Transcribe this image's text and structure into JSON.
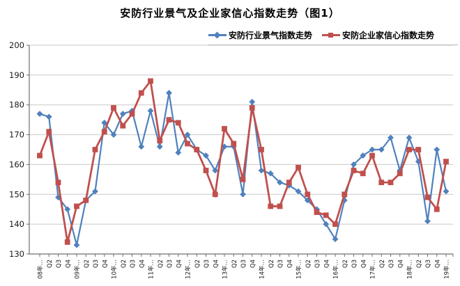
{
  "title": "安防行业景气及企业家信心指数走势（图1）",
  "legend": {
    "items": [
      {
        "label": "安防行业景气指数走势",
        "color": "#4F81BD",
        "marker": "diamond"
      },
      {
        "label": "安防企业家信心指数走势",
        "color": "#C0504D",
        "marker": "square"
      }
    ]
  },
  "chart_data": {
    "type": "line",
    "title": "安防行业景气及企业家信心指数走势（图1）",
    "categories": [
      "08年…",
      "Q2",
      "Q3",
      "Q4",
      "09年…",
      "Q2",
      "Q3",
      "Q4",
      "10年…",
      "Q2",
      "Q3",
      "Q4",
      "11年…",
      "Q2",
      "Q3",
      "Q4",
      "12年…",
      "Q2",
      "Q3",
      "Q4",
      "13年…",
      "Q2",
      "Q3",
      "Q4",
      "14年…",
      "Q2",
      "Q3",
      "Q4",
      "15年…",
      "Q2",
      "Q3",
      "Q4",
      "16年…",
      "Q2",
      "Q3",
      "Q4",
      "17年…",
      "Q2",
      "Q3",
      "Q4",
      "18年…",
      "Q2",
      "Q3",
      "Q4",
      "19年…"
    ],
    "series": [
      {
        "name": "安防行业景气指数走势",
        "color": "#4F81BD",
        "marker": "diamond",
        "values": [
          177,
          176,
          149,
          145,
          133,
          148,
          151,
          174,
          170,
          177,
          178,
          166,
          178,
          166,
          184,
          164,
          170,
          165,
          163,
          158,
          166,
          166,
          150,
          181,
          158,
          157,
          154,
          153,
          151,
          148,
          145,
          140,
          135,
          148,
          160,
          163,
          165,
          165,
          169,
          158,
          169,
          161,
          141,
          165,
          151
        ]
      },
      {
        "name": "安防企业家信心指数走势",
        "color": "#C0504D",
        "marker": "square",
        "values": [
          163,
          171,
          154,
          134,
          146,
          148,
          165,
          171,
          179,
          173,
          177,
          184,
          188,
          168,
          175,
          174,
          167,
          165,
          158,
          150,
          172,
          167,
          155,
          179,
          165,
          146,
          146,
          154,
          159,
          150,
          144,
          143,
          140,
          150,
          158,
          157,
          163,
          154,
          154,
          157,
          165,
          165,
          149,
          145,
          161
        ]
      }
    ],
    "ylim": [
      130,
      200
    ],
    "y_ticks": [
      130,
      140,
      150,
      160,
      170,
      180,
      190,
      200
    ],
    "grid": true,
    "legend_position": "top-right",
    "grid_color": "#c9c9c9",
    "axis_color": "#6e6e6e",
    "tick_label_color": "#1a1a1a"
  }
}
